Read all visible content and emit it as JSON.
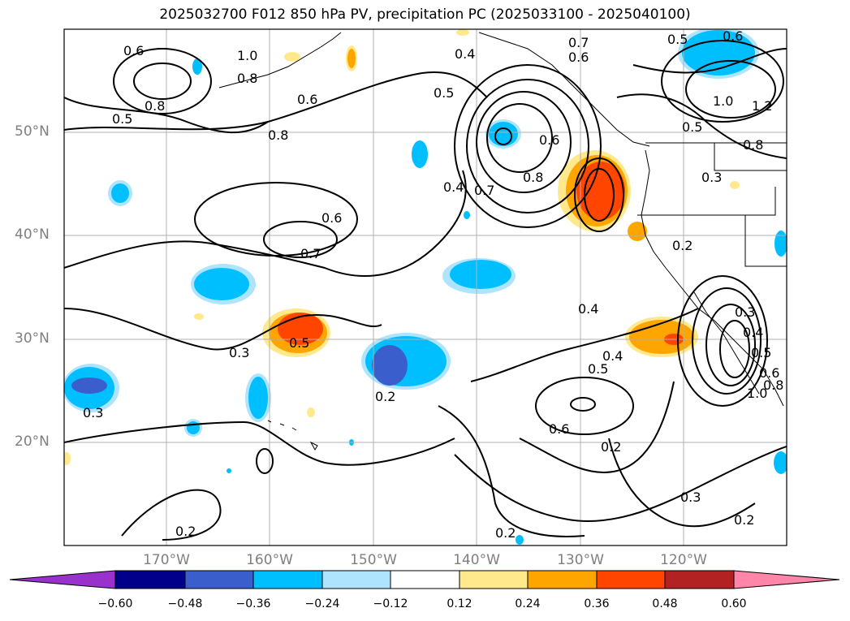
{
  "title": "2025032700 F012 850 hPa PV, precipitation PC (2025033100 - 2025040100)",
  "lat_labels": [
    "50°N",
    "40°N",
    "30°N",
    "20°N"
  ],
  "lon_labels": [
    "170°W",
    "160°W",
    "150°W",
    "140°W",
    "130°W",
    "120°W"
  ],
  "colorbar": {
    "ticks": [
      "−0.60",
      "−0.48",
      "−0.36",
      "−0.24",
      "−0.12",
      "0.12",
      "0.24",
      "0.36",
      "0.48",
      "0.60"
    ],
    "colors": [
      "#9932cc",
      "#00008b",
      "#3a5fcd",
      "#00bfff",
      "#afe4ff",
      "#ffffff",
      "#ffe98c",
      "#ffa500",
      "#ff4500",
      "#b22222",
      "#ff86a8"
    ]
  },
  "contour_labels": [
    "0.6",
    "1.0",
    "0.8",
    "0.8",
    "0.5",
    "0.8",
    "0.6",
    "0.4",
    "0.5",
    "0.7",
    "0.6",
    "0.5",
    "0.6",
    "1.0",
    "1.2",
    "0.5",
    "0.8",
    "0.6",
    "0.8",
    "0.7",
    "0.4",
    "0.3",
    "0.6",
    "0.7",
    "0.2",
    "0.4",
    "0.5",
    "0.3",
    "0.2",
    "0.3",
    "0.4",
    "0.5",
    "0.6",
    "0.2",
    "0.3",
    "0.2",
    "0.2",
    "0.2",
    "0.3",
    "0.4",
    "0.5",
    "0.6",
    "0.8",
    "1.0"
  ]
}
